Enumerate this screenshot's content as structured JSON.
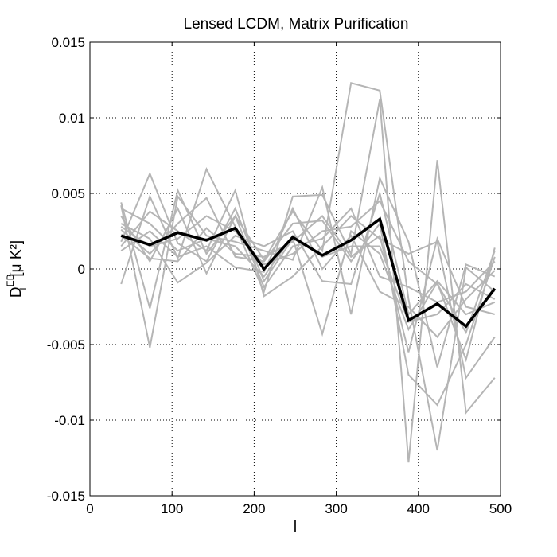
{
  "chart_data": {
    "type": "line",
    "title": "Lensed LCDM, Matrix Purification",
    "xlabel": "l",
    "ylabel_main": "D",
    "ylabel_sub": "l",
    "ylabel_sup": "EB",
    "ylabel_unit": "[μ K²]",
    "xlim": [
      0,
      500
    ],
    "ylim": [
      -0.015,
      0.015
    ],
    "x_ticks": [
      0,
      100,
      200,
      300,
      400,
      500
    ],
    "x_tick_labels": [
      "0",
      "100",
      "200",
      "300",
      "400",
      "500"
    ],
    "y_ticks": [
      -0.015,
      -0.01,
      -0.005,
      0,
      0.005,
      0.01,
      0.015
    ],
    "y_tick_labels": [
      "-0.015",
      "-0.01",
      "-0.005",
      "0",
      "0.005",
      "0.01",
      "0.015"
    ],
    "grid": true,
    "colors": {
      "realization": "#b5b5b5",
      "mean": "#000000"
    },
    "x": [
      38,
      73,
      107,
      142,
      177,
      212,
      247,
      283,
      318,
      353,
      388,
      423,
      458,
      493
    ],
    "series": [
      {
        "values": [
          0.0044,
          -0.0026,
          0.0052,
          0.001,
          0.0035,
          0.0006,
          0.0038,
          0.0012,
          0.0123,
          0.0118,
          -0.002,
          -0.012,
          0.0001,
          -0.0015
        ]
      },
      {
        "values": [
          -0.001,
          0.0048,
          0.0007,
          0.0066,
          0.0028,
          -0.0015,
          0.0048,
          0.0049,
          0.001,
          0.0112,
          -0.0128,
          0.0072,
          -0.0095,
          -0.0072
        ]
      },
      {
        "values": [
          0.0042,
          -0.0052,
          0.0048,
          0.0022,
          0.0018,
          0.0012,
          0.0006,
          0.0054,
          -0.003,
          0.006,
          0.0018,
          -0.0065,
          0.0003,
          -0.0005
        ]
      },
      {
        "values": [
          0.0018,
          0.0063,
          0.0017,
          0.0005,
          0.004,
          -0.0008,
          0.002,
          -0.0043,
          0.0025,
          0.001,
          -0.004,
          -0.0009,
          -0.006,
          0.0014
        ]
      },
      {
        "values": [
          0.0026,
          0.001,
          0.003,
          0.0047,
          0.0008,
          0.0005,
          0.003,
          0.0032,
          0.0005,
          0.003,
          -0.007,
          -0.009,
          -0.005,
          0.0008
        ]
      },
      {
        "values": [
          0.0015,
          0.0038,
          0.0025,
          0.0012,
          0.0052,
          -0.0018,
          -0.0005,
          0.0015,
          0.0035,
          0.002,
          0.001,
          0.0018,
          -0.0072,
          -0.0045
        ]
      },
      {
        "values": [
          0.003,
          0.002,
          -0.0009,
          0.0004,
          0.0022,
          0.0015,
          0.0025,
          -0.0008,
          -0.001,
          0.005,
          -0.003,
          -0.0008,
          -0.003,
          -0.0022
        ]
      },
      {
        "values": [
          0.0035,
          0.0005,
          0.004,
          -0.0003,
          0.0035,
          -0.0012,
          0.0015,
          0.002,
          0.004,
          -0.0005,
          -0.0012,
          -0.0022,
          -0.0015,
          0.0005
        ]
      },
      {
        "values": [
          0.0022,
          0.0007,
          0.0005,
          0.0027,
          0.001,
          0.0008,
          0.0018,
          0.0035,
          0.0008,
          0.0022,
          -0.0055,
          0.002,
          -0.0025,
          -0.003
        ]
      },
      {
        "values": [
          0.0012,
          0.0025,
          0.0008,
          0.0015,
          0.0001,
          -0.0002,
          0.004,
          0.0,
          0.0022,
          -0.0015,
          -0.0025,
          -0.0045,
          -0.002,
          -0.0001
        ]
      },
      {
        "values": [
          0.0028,
          0.0015,
          0.002,
          0.0035,
          0.0025,
          0.0003,
          0.001,
          0.0025,
          0.0028,
          0.0045,
          0.0005,
          -0.001,
          -0.0042,
          0.0012
        ]
      },
      {
        "values": [
          0.004,
          0.003,
          0.0012,
          0.002,
          0.0015,
          -0.0005,
          0.0022,
          0.0008,
          0.0015,
          0.0015,
          -0.0035,
          -0.003,
          -0.001,
          -0.002
        ]
      }
    ],
    "mean": {
      "values": [
        0.0022,
        0.0016,
        0.0024,
        0.0019,
        0.0027,
        0.0,
        0.0021,
        0.0009,
        0.0019,
        0.0033,
        -0.0034,
        -0.0023,
        -0.0038,
        -0.0013
      ]
    }
  }
}
